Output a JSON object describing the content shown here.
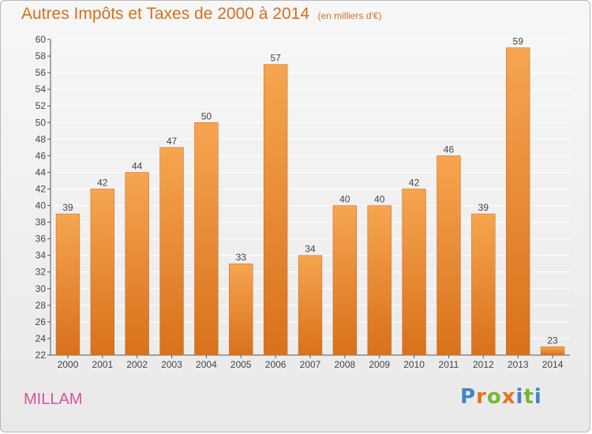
{
  "title": "Autres Impôts et Taxes de 2000 à 2014",
  "unit": "(en milliers d'€)",
  "commune": "MILLAM",
  "logo_text": "Proxiti",
  "logo_colors": [
    "#3f86c8",
    "#e8721c",
    "#7ab632",
    "#e8721c",
    "#3f86c8",
    "#7ab632",
    "#3f86c8"
  ],
  "colors": {
    "bar_top": "#f6a550",
    "bar_bottom": "#d9711b",
    "title": "#d4701f",
    "commune": "#d65598",
    "grid": "#ffffff"
  },
  "chart_data": {
    "type": "bar",
    "title": "Autres Impôts et Taxes de 2000 à 2014",
    "subtitle": "(en milliers d'€)",
    "xlabel": "",
    "ylabel": "",
    "categories": [
      "2000",
      "2001",
      "2002",
      "2003",
      "2004",
      "2005",
      "2006",
      "2007",
      "2008",
      "2009",
      "2010",
      "2011",
      "2012",
      "2013",
      "2014"
    ],
    "values": [
      39,
      42,
      44,
      47,
      50,
      33,
      57,
      34,
      40,
      40,
      42,
      46,
      39,
      59,
      23
    ],
    "ylim": [
      22,
      60
    ],
    "ytick_step": 2,
    "grid": true,
    "data_labels": true
  }
}
